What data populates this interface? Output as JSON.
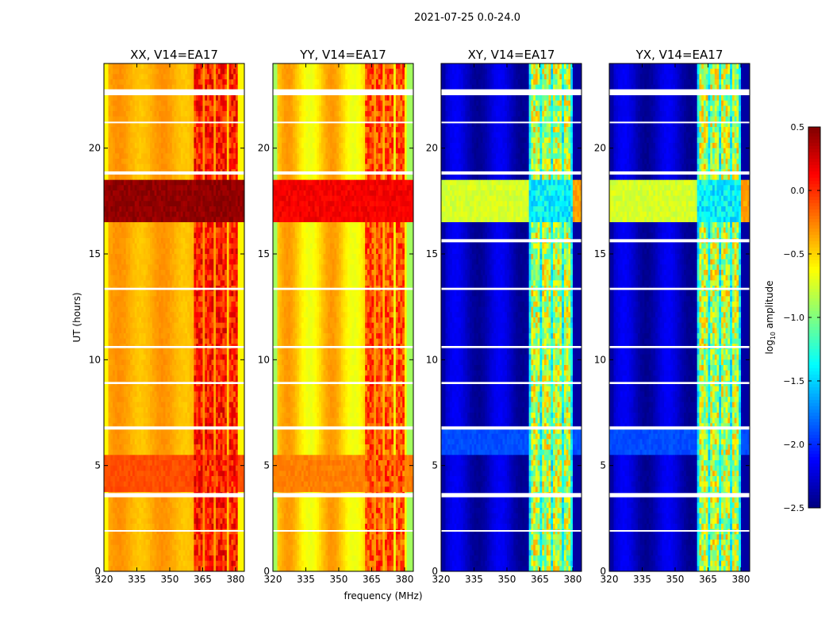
{
  "chart_data": {
    "type": "heatmap",
    "title": "2021-07-25 0.0-24.0",
    "xlabel": "frequency (MHz)",
    "ylabel": "UT (hours)",
    "xlim": [
      320,
      384
    ],
    "ylim": [
      0,
      24
    ],
    "xticks": [
      "320",
      "335",
      "350",
      "365",
      "380"
    ],
    "xtick_values": [
      320,
      335,
      350,
      365,
      380
    ],
    "yticks": [
      "0",
      "5",
      "10",
      "15",
      "20"
    ],
    "ytick_values": [
      0,
      5,
      10,
      15,
      20
    ],
    "colorbar": {
      "label": "log10 amplitude",
      "label_main": "log",
      "label_sub": "10",
      "label_rest": " amplitude",
      "range": [
        -2.5,
        0.5
      ],
      "ticks": [
        "0.5",
        "0.0",
        "−0.5",
        "−1.0",
        "−1.5",
        "−2.0",
        "−2.5"
      ],
      "tick_values": [
        0.5,
        0.0,
        -0.5,
        -1.0,
        -1.5,
        -2.0,
        -2.5
      ],
      "colormap": "jet"
    },
    "flagged_hours": [
      [
        22.5,
        22.78
      ],
      [
        18.75,
        18.9
      ],
      [
        6.7,
        6.85
      ],
      [
        3.5,
        3.7
      ],
      [
        13.3,
        13.4
      ],
      [
        8.85,
        8.95
      ],
      [
        10.55,
        10.65
      ],
      [
        1.9,
        1.95
      ],
      [
        21.2,
        21.25
      ]
    ],
    "panels": [
      {
        "title": "XX, V14=EA17",
        "base": -0.38,
        "edge": -0.6,
        "ripple": 0.08,
        "rfi_ranges": [
          [
            361,
            365
          ],
          [
            366,
            370
          ],
          [
            371,
            376
          ],
          [
            377,
            381
          ]
        ],
        "rfi_level": 0.05,
        "bright_band": [
          16.6,
          18.4
        ],
        "bright_level": 0.45,
        "mid_band": [
          3.7,
          5.6
        ],
        "mid_level": -0.1,
        "flagged_extra": []
      },
      {
        "title": "YY, V14=EA17",
        "base": -0.5,
        "edge": -0.9,
        "ripple": 0.18,
        "rfi_ranges": [
          [
            362,
            366
          ],
          [
            367,
            370
          ],
          [
            371,
            375
          ],
          [
            376,
            380
          ]
        ],
        "rfi_level": -0.1,
        "bright_band": [
          16.6,
          18.4
        ],
        "bright_level": 0.15,
        "mid_band": [
          3.7,
          5.6
        ],
        "mid_level": -0.25,
        "flagged_extra": []
      },
      {
        "title": "XY, V14=EA17",
        "base": -2.3,
        "edge": -2.4,
        "ripple": 0.15,
        "rfi_ranges": [
          [
            361,
            365
          ],
          [
            366,
            370
          ],
          [
            371,
            375
          ],
          [
            376,
            379
          ]
        ],
        "rfi_level": -0.8,
        "bright_band": [
          16.6,
          18.4
        ],
        "bright_level": -0.75,
        "mid_band": [
          5.6,
          6.7
        ],
        "mid_level": -1.9,
        "flagged_extra": [
          [
            15.55,
            15.7
          ]
        ]
      },
      {
        "title": "YX, V14=EA17",
        "base": -2.3,
        "edge": -2.4,
        "ripple": 0.15,
        "rfi_ranges": [
          [
            361,
            365
          ],
          [
            366,
            370
          ],
          [
            371,
            375
          ],
          [
            376,
            379
          ]
        ],
        "rfi_level": -0.8,
        "bright_band": [
          16.6,
          18.4
        ],
        "bright_level": -0.75,
        "mid_band": [
          5.6,
          6.7
        ],
        "mid_level": -1.9,
        "flagged_extra": [
          [
            15.55,
            15.7
          ]
        ]
      }
    ]
  }
}
